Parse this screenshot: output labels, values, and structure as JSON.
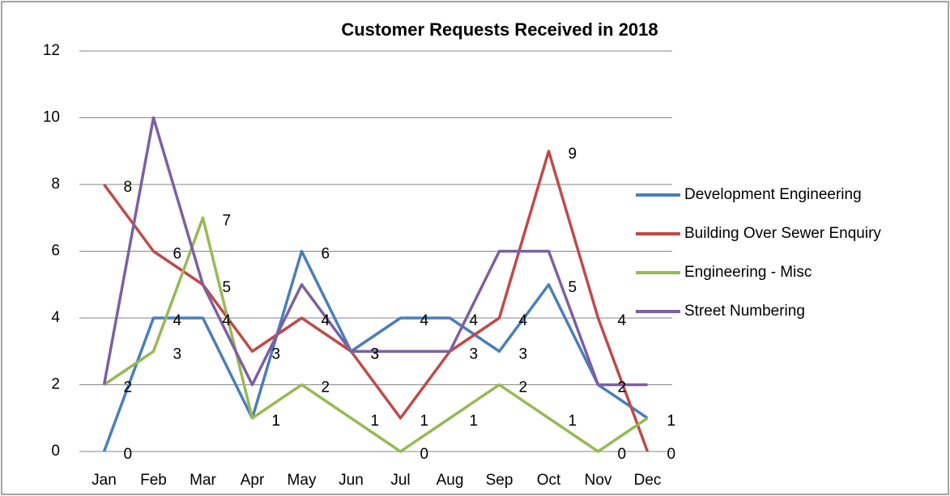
{
  "chart_data": {
    "type": "line",
    "title": "Customer Requests Received in 2018",
    "categories": [
      "Jan",
      "Feb",
      "Mar",
      "Apr",
      "May",
      "Jun",
      "Jul",
      "Aug",
      "Sep",
      "Oct",
      "Nov",
      "Dec"
    ],
    "series": [
      {
        "name": "Development Engineering",
        "color": "#4a7ebb",
        "data_labels": true,
        "values": [
          0,
          4,
          4,
          1,
          6,
          3,
          4,
          4,
          3,
          5,
          2,
          1
        ]
      },
      {
        "name": "Building Over Sewer Enquiry",
        "color": "#be4b48",
        "data_labels": true,
        "values": [
          8,
          6,
          5,
          3,
          4,
          3,
          1,
          3,
          4,
          9,
          4,
          0
        ]
      },
      {
        "name": "Engineering - Misc",
        "color": "#98b954",
        "data_labels": true,
        "values": [
          2,
          3,
          7,
          1,
          2,
          1,
          0,
          1,
          2,
          1,
          0,
          1
        ]
      },
      {
        "name": "Street Numbering",
        "color": "#7d60a0",
        "data_labels": false,
        "values": [
          2,
          10,
          5,
          2,
          5,
          3,
          3,
          3,
          6,
          6,
          2,
          2
        ]
      }
    ],
    "ylim": [
      0,
      12
    ],
    "yticks": [
      0,
      2,
      4,
      6,
      8,
      10,
      12
    ],
    "grid": true,
    "legend": "right"
  }
}
